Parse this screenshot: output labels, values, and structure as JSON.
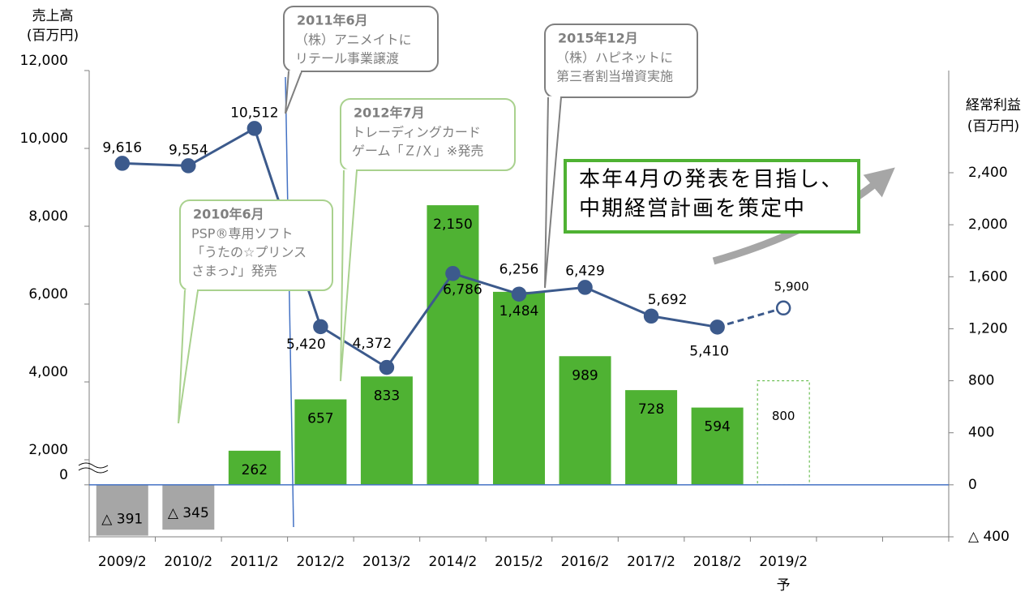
{
  "chart_data": {
    "type": "bar-line",
    "categories": [
      "2009/2",
      "2010/2",
      "2011/2",
      "2012/2",
      "2013/2",
      "2014/2",
      "2015/2",
      "2016/2",
      "2017/2",
      "2018/2",
      "2019/2",
      null,
      null
    ],
    "forecast_note": "予",
    "ylabel": [
      "売上高",
      "(百万円)"
    ],
    "y2label": [
      "経常利益",
      "(百万円)"
    ],
    "ylim": [
      2000,
      12000
    ],
    "yticks": [
      0,
      {
        "value": 2000,
        "label": "2,000"
      },
      {
        "value": 4000,
        "label": "4,000"
      },
      {
        "value": 6000,
        "label": "6,000"
      },
      {
        "value": 8000,
        "label": "8,000"
      },
      {
        "value": 10000,
        "label": "10,000"
      },
      {
        "value": 12000,
        "label": "12,000"
      }
    ],
    "axis_break": true,
    "y2lim": [
      -400,
      2400
    ],
    "y2ticks": [
      {
        "value": -400,
        "label": "△ 400"
      },
      0,
      400,
      800,
      {
        "value": 1200,
        "label": "1,200"
      },
      {
        "value": 1600,
        "label": "1,600"
      },
      {
        "value": 2000,
        "label": "2,000"
      },
      {
        "value": 2400,
        "label": "2,400"
      }
    ],
    "series": [
      {
        "name": "経常利益",
        "type": "bar",
        "axis": "y2",
        "color": "#4fb233",
        "negative_color": "#a6a6a6",
        "dashed_last": true,
        "values": [
          -391,
          -345,
          262,
          657,
          833,
          2150,
          1484,
          989,
          728,
          594,
          800,
          null,
          null
        ],
        "value_labels": [
          "△ 391",
          "△ 345",
          "262",
          "657",
          "833",
          "2,150",
          "1,484",
          "989",
          "728",
          "594",
          "800",
          null,
          null
        ]
      },
      {
        "name": "売上高",
        "type": "line",
        "color": "#3c5a8c",
        "dashed_last": true,
        "values": [
          9616,
          9554,
          10512,
          5420,
          4372,
          6786,
          6256,
          6429,
          5692,
          5410,
          5900,
          null,
          null
        ],
        "value_labels": [
          "9,616",
          "9,554",
          "10,512",
          "5,420",
          "4,372",
          "6,786",
          "6,256",
          "6,429",
          "5,692",
          "5,410",
          "5,900",
          null,
          null
        ]
      }
    ],
    "annotations": [
      {
        "title": "2011年6月",
        "lines": [
          "（株）アニメイトに",
          "リテール事業譲渡"
        ]
      },
      {
        "title": "2012年7月",
        "lines": [
          "トレーディングカード",
          "ゲーム「Ｚ/Ｘ」※発売"
        ]
      },
      {
        "title": "2010年6月",
        "lines": [
          "PSP®専用ソフト",
          "「うたの☆プリンス",
          "さまっ♪」発売"
        ]
      },
      {
        "title": "2015年12月",
        "lines": [
          "（株）ハピネットに",
          "第三者割当増資実施"
        ]
      }
    ],
    "message": [
      "本年4月の発表を目指し、",
      "中期経営計画を策定中"
    ]
  }
}
